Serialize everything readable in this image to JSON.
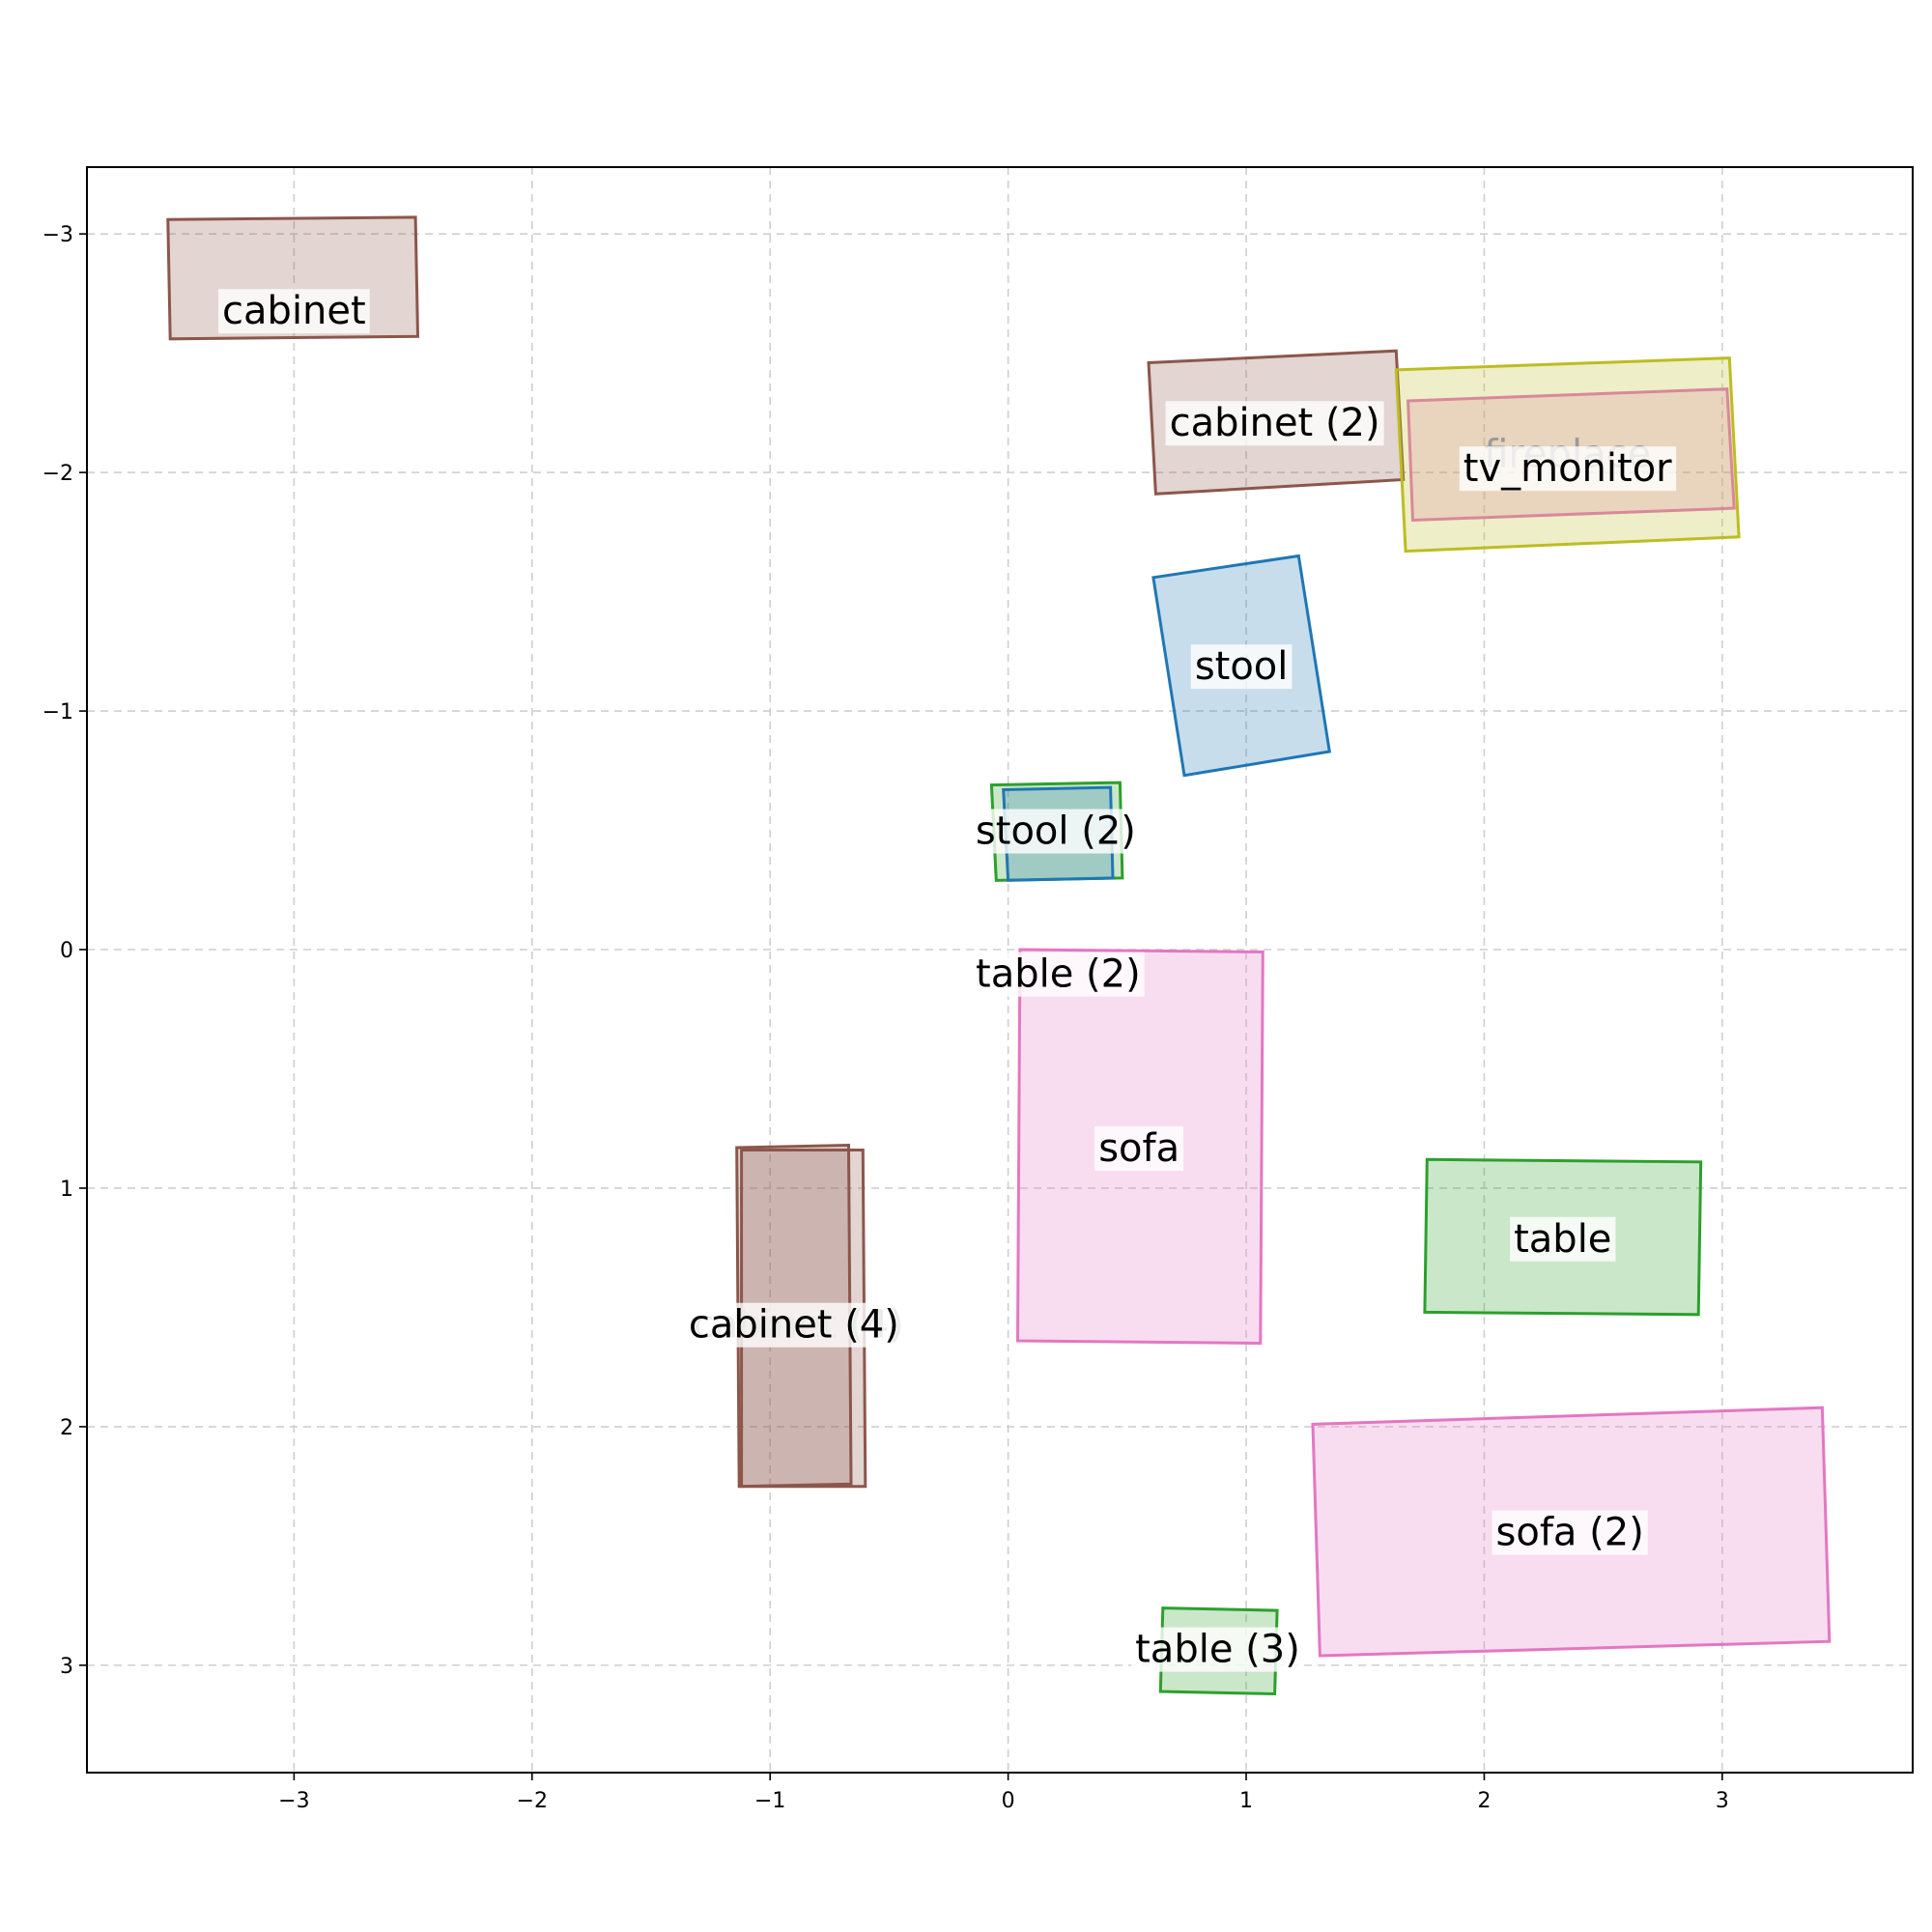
{
  "chart_data": {
    "type": "scatter",
    "title": "",
    "xlabel": "",
    "ylabel": "",
    "xlim": [
      -3.87,
      3.8
    ],
    "ylim": [
      3.45,
      -3.28
    ],
    "y_inverted": true,
    "grid": true,
    "xticks": [
      -3,
      -2,
      -1,
      0,
      1,
      2,
      3
    ],
    "yticks": [
      -3,
      -2,
      -1,
      0,
      1,
      2,
      3
    ],
    "xtick_labels": [
      "−3",
      "−2",
      "−1",
      "0",
      "1",
      "2",
      "3"
    ],
    "ytick_labels": [
      "−3",
      "−2",
      "−1",
      "0",
      "1",
      "2",
      "3"
    ],
    "colors": {
      "cabinet": "#8c564b",
      "fireplace": "#e377c2",
      "tv_monitor": "#bcbd22",
      "stool": "#1f77b4",
      "table": "#2ca02c",
      "sofa": "#e377c2"
    },
    "objects": [
      {
        "label": "cabinet",
        "category": "cabinet",
        "center": [
          -3.0,
          -2.68
        ],
        "corners": [
          [
            -3.53,
            -3.06
          ],
          [
            -2.49,
            -3.07
          ],
          [
            -2.48,
            -2.57
          ],
          [
            -3.52,
            -2.56
          ]
        ]
      },
      {
        "label": "cabinet (2)",
        "category": "cabinet",
        "center": [
          1.12,
          -2.21
        ],
        "corners": [
          [
            0.59,
            -2.46
          ],
          [
            1.63,
            -2.51
          ],
          [
            1.66,
            -1.97
          ],
          [
            0.62,
            -1.91
          ]
        ]
      },
      {
        "label": "fireplace",
        "category": "fireplace",
        "center": [
          2.35,
          -2.08
        ],
        "faded": true,
        "corners": [
          [
            1.68,
            -2.3
          ],
          [
            3.02,
            -2.35
          ],
          [
            3.05,
            -1.85
          ],
          [
            1.7,
            -1.8
          ]
        ]
      },
      {
        "label": "tv_monitor",
        "category": "tv_monitor",
        "center": [
          2.35,
          -2.02
        ],
        "corners": [
          [
            1.63,
            -2.43
          ],
          [
            3.03,
            -2.48
          ],
          [
            3.07,
            -1.73
          ],
          [
            1.67,
            -1.67
          ]
        ]
      },
      {
        "label": "stool",
        "category": "stool",
        "center": [
          0.98,
          -1.19
        ],
        "corners": [
          [
            0.61,
            -1.56
          ],
          [
            1.22,
            -1.65
          ],
          [
            1.35,
            -0.83
          ],
          [
            0.74,
            -0.73
          ]
        ]
      },
      {
        "label": "stool (2)",
        "category": "table",
        "center": [
          0.2,
          -0.5
        ],
        "corners": [
          [
            -0.07,
            -0.69
          ],
          [
            0.47,
            -0.7
          ],
          [
            0.48,
            -0.3
          ],
          [
            -0.05,
            -0.29
          ]
        ]
      },
      {
        "label": "stool (2)",
        "category": "stool",
        "center": [
          0.2,
          -0.48
        ],
        "hidden_label": true,
        "corners": [
          [
            -0.02,
            -0.67
          ],
          [
            0.43,
            -0.68
          ],
          [
            0.44,
            -0.3
          ],
          [
            0.0,
            -0.29
          ]
        ]
      },
      {
        "label": "table (2)",
        "category": "sofa",
        "center": [
          0.21,
          0.1
        ],
        "label_only": true,
        "corners": []
      },
      {
        "label": "sofa",
        "category": "sofa",
        "center": [
          0.55,
          0.83
        ],
        "corners": [
          [
            0.05,
            0.0
          ],
          [
            1.07,
            0.01
          ],
          [
            1.06,
            1.65
          ],
          [
            0.04,
            1.64
          ]
        ]
      },
      {
        "label": "table",
        "category": "table",
        "center": [
          2.33,
          1.21
        ],
        "corners": [
          [
            1.76,
            0.88
          ],
          [
            2.91,
            0.89
          ],
          [
            2.9,
            1.53
          ],
          [
            1.75,
            1.52
          ]
        ]
      },
      {
        "label": "cabinet (4)",
        "category": "cabinet",
        "center": [
          -0.88,
          1.57
        ],
        "faded": true,
        "corners": [
          [
            -1.12,
            0.84
          ],
          [
            -0.61,
            0.84
          ],
          [
            -0.6,
            2.25
          ],
          [
            -1.12,
            2.25
          ]
        ]
      },
      {
        "label": "cabinet (4)",
        "category": "cabinet",
        "center": [
          -0.9,
          1.57
        ],
        "corners": [
          [
            -1.14,
            0.83
          ],
          [
            -0.67,
            0.82
          ],
          [
            -0.66,
            2.24
          ],
          [
            -1.13,
            2.25
          ]
        ]
      },
      {
        "label": "sofa (2)",
        "category": "sofa",
        "center": [
          2.36,
          2.44
        ],
        "corners": [
          [
            1.28,
            1.99
          ],
          [
            3.42,
            1.92
          ],
          [
            3.45,
            2.9
          ],
          [
            1.31,
            2.96
          ]
        ]
      },
      {
        "label": "table (3)",
        "category": "table",
        "center": [
          0.88,
          2.93
        ],
        "corners": [
          [
            0.65,
            2.76
          ],
          [
            1.13,
            2.77
          ],
          [
            1.12,
            3.12
          ],
          [
            0.64,
            3.11
          ]
        ]
      }
    ]
  }
}
